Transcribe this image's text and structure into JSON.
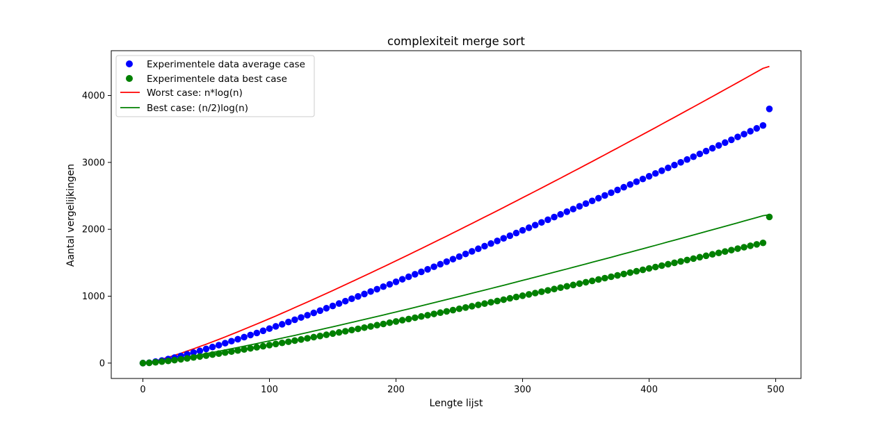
{
  "chart_data": {
    "type": "scatter",
    "title": "complexiteit merge sort",
    "xlabel": "Lengte lijst",
    "ylabel": "Aantal vergelijkingen",
    "xlim": [
      -25,
      520
    ],
    "ylim": [
      -230,
      4670
    ],
    "x_ticks": [
      0,
      100,
      200,
      300,
      400,
      500
    ],
    "y_ticks": [
      0,
      1000,
      2000,
      3000,
      4000
    ],
    "grid": false,
    "legend_position": "top-left",
    "x": [
      0,
      5,
      10,
      15,
      20,
      25,
      30,
      35,
      40,
      45,
      50,
      55,
      60,
      65,
      70,
      75,
      80,
      85,
      90,
      95,
      100,
      105,
      110,
      115,
      120,
      125,
      130,
      135,
      140,
      145,
      150,
      155,
      160,
      165,
      170,
      175,
      180,
      185,
      190,
      195,
      200,
      205,
      210,
      215,
      220,
      225,
      230,
      235,
      240,
      245,
      250,
      255,
      260,
      265,
      270,
      275,
      280,
      285,
      290,
      295,
      300,
      305,
      310,
      315,
      320,
      325,
      330,
      335,
      340,
      345,
      350,
      355,
      360,
      365,
      370,
      375,
      380,
      385,
      390,
      395,
      400,
      405,
      410,
      415,
      420,
      425,
      430,
      435,
      440,
      445,
      450,
      455,
      460,
      465,
      470,
      475,
      480,
      485,
      490,
      495
    ],
    "series": [
      {
        "name": "Experimentele data average case",
        "kind": "scatter",
        "color": "#0000ff",
        "values": [
          0,
          5,
          22,
          38,
          60,
          82,
          106,
          131,
          158,
          183,
          212,
          240,
          268,
          298,
          328,
          357,
          388,
          420,
          450,
          483,
          516,
          549,
          580,
          614,
          648,
          682,
          716,
          750,
          784,
          820,
          854,
          890,
          926,
          962,
          997,
          1033,
          1070,
          1105,
          1143,
          1178,
          1215,
          1253,
          1290,
          1328,
          1364,
          1402,
          1440,
          1478,
          1516,
          1554,
          1592,
          1632,
          1670,
          1709,
          1748,
          1787,
          1826,
          1865,
          1904,
          1944,
          1984,
          2023,
          2063,
          2103,
          2143,
          2183,
          2223,
          2263,
          2303,
          2344,
          2384,
          2425,
          2465,
          2506,
          2547,
          2588,
          2629,
          2670,
          2711,
          2752,
          2793,
          2835,
          2876,
          2918,
          2960,
          3001,
          3043,
          3085,
          3127,
          3169,
          3212,
          3254,
          3296,
          3338,
          3381,
          3423,
          3466,
          3509,
          3552,
          3800
        ]
      },
      {
        "name": "Experimentele data best case",
        "kind": "scatter",
        "color": "#008000",
        "values": [
          0,
          4,
          12,
          22,
          32,
          44,
          57,
          70,
          84,
          98,
          112,
          127,
          142,
          157,
          172,
          188,
          204,
          220,
          236,
          252,
          269,
          286,
          302,
          319,
          336,
          353,
          370,
          388,
          405,
          423,
          441,
          458,
          476,
          494,
          512,
          530,
          548,
          567,
          585,
          604,
          622,
          641,
          659,
          678,
          697,
          716,
          735,
          754,
          773,
          792,
          812,
          831,
          850,
          870,
          889,
          909,
          928,
          948,
          968,
          988,
          1007,
          1027,
          1047,
          1067,
          1087,
          1107,
          1128,
          1148,
          1168,
          1188,
          1209,
          1229,
          1250,
          1270,
          1291,
          1311,
          1332,
          1353,
          1373,
          1394,
          1415,
          1436,
          1457,
          1478,
          1499,
          1520,
          1541,
          1562,
          1583,
          1604,
          1626,
          1647,
          1668,
          1689,
          1711,
          1732,
          1754,
          1775,
          1797,
          2185
        ]
      },
      {
        "name": "Worst case: n*log(n)",
        "kind": "line",
        "color": "#ff0000",
        "function": "n*log2(n)",
        "values": [
          0,
          12,
          33,
          59,
          86,
          116,
          147,
          180,
          213,
          248,
          282,
          318,
          354,
          391,
          429,
          467,
          506,
          545,
          584,
          624,
          664,
          704,
          746,
          787,
          829,
          871,
          913,
          956,
          998,
          1041,
          1084,
          1128,
          1172,
          1216,
          1260,
          1304,
          1349,
          1394,
          1438,
          1483,
          1529,
          1575,
          1620,
          1666,
          1712,
          1759,
          1805,
          1852,
          1898,
          1945,
          1992,
          2040,
          2087,
          2135,
          2183,
          2230,
          2278,
          2326,
          2375,
          2423,
          2472,
          2520,
          2569,
          2618,
          2667,
          2716,
          2765,
          2815,
          2865,
          2914,
          2964,
          3014,
          3064,
          3114,
          3165,
          3215,
          3266,
          3317,
          3367,
          3418,
          3469,
          3520,
          3572,
          3623,
          3674,
          3726,
          3778,
          3829,
          3881,
          3933,
          3985,
          4037,
          4090,
          4142,
          4194,
          4247,
          4300,
          4353,
          4406,
          4435
        ]
      },
      {
        "name": "Best case: (n/2)log(n)",
        "kind": "line",
        "color": "#008000",
        "function": "(n/2)*log2(n)",
        "values": [
          0,
          6,
          17,
          29,
          43,
          58,
          74,
          90,
          106,
          124,
          141,
          159,
          177,
          196,
          215,
          233,
          253,
          272,
          292,
          312,
          332,
          352,
          373,
          394,
          414,
          436,
          457,
          478,
          499,
          521,
          542,
          564,
          586,
          608,
          630,
          652,
          674,
          697,
          719,
          742,
          764,
          787,
          810,
          833,
          856,
          879,
          903,
          926,
          949,
          973,
          996,
          1020,
          1044,
          1067,
          1091,
          1115,
          1139,
          1163,
          1187,
          1212,
          1236,
          1260,
          1285,
          1309,
          1334,
          1358,
          1383,
          1407,
          1432,
          1457,
          1482,
          1507,
          1532,
          1557,
          1582,
          1608,
          1633,
          1658,
          1684,
          1709,
          1735,
          1760,
          1786,
          1812,
          1837,
          1863,
          1889,
          1915,
          1941,
          1967,
          1993,
          2019,
          2045,
          2071,
          2097,
          2124,
          2150,
          2176,
          2203,
          2217
        ]
      }
    ]
  }
}
